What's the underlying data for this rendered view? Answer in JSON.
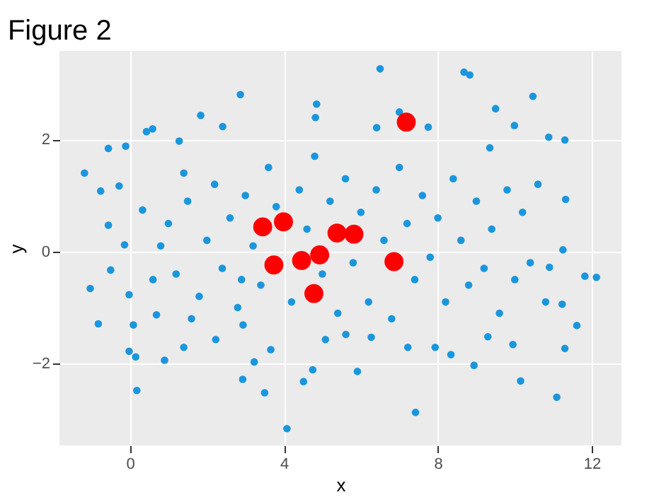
{
  "chart_data": {
    "type": "scatter",
    "title": "Figure 2",
    "xlabel": "x",
    "ylabel": "y",
    "xlim": [
      -1.83,
      12.77
    ],
    "ylim": [
      -3.46,
      3.58
    ],
    "xticks": [
      0,
      4,
      8,
      12
    ],
    "yticks": [
      -2,
      0,
      2
    ],
    "grid": true,
    "series": [
      {
        "color": "#1a96dd",
        "x": [
          -1.18,
          -1.03,
          -0.82,
          -0.76,
          -0.56,
          -0.28,
          -0.11,
          -0.02,
          0.18,
          0.15,
          0.43,
          0.59,
          0.9,
          1.28,
          1.84,
          2.41,
          2.87,
          2.93,
          3.23,
          3.5,
          4.08,
          4.51,
          4.75,
          4.85,
          4.82,
          5.91,
          6.41,
          6.5,
          7.0,
          7.42,
          7.75,
          8.68,
          8.83,
          8.94,
          9.5,
          9.99,
          10.15,
          10.47,
          10.88,
          11.09,
          11.3,
          11.3,
          11.61,
          11.82,
          12.12,
          11.32,
          11.25,
          11.23,
          10.9,
          9.95,
          9.3,
          9.35,
          8.34,
          7.93,
          7.22,
          6.27,
          5.61,
          5.08,
          3.66,
          2.94,
          2.23,
          1.4,
          0.69,
          0.09,
          -0.5,
          -0.14,
          -0.56,
          0.33,
          -0.02,
          1.0,
          1.2,
          1.5,
          1.8,
          2.0,
          2.2,
          2.4,
          2.6,
          2.8,
          3.0,
          3.2,
          3.4,
          3.6,
          3.8,
          4.2,
          4.4,
          4.6,
          4.8,
          5.0,
          5.2,
          5.4,
          5.6,
          5.8,
          6.0,
          6.2,
          6.4,
          6.6,
          6.8,
          7.0,
          7.2,
          7.4,
          7.6,
          7.8,
          8.0,
          8.2,
          8.4,
          8.6,
          8.8,
          9.0,
          9.2,
          9.4,
          9.6,
          9.8,
          10.0,
          10.2,
          10.4,
          10.6,
          10.8,
          0.6,
          0.8,
          1.4,
          1.6,
          2.9
        ],
        "values": [
          1.4,
          -0.66,
          -1.29,
          1.08,
          1.84,
          1.17,
          1.88,
          -1.78,
          -2.48,
          -1.88,
          2.14,
          2.19,
          -1.94,
          1.97,
          2.43,
          2.23,
          2.8,
          -2.28,
          -1.97,
          -2.52,
          -3.16,
          -2.32,
          -2.11,
          2.63,
          2.39,
          -2.14,
          2.21,
          3.26,
          2.49,
          -2.87,
          2.22,
          3.2,
          3.15,
          -2.03,
          2.55,
          2.25,
          -2.31,
          2.77,
          2.04,
          -2.6,
          1.99,
          -1.73,
          -1.32,
          -0.44,
          -0.46,
          0.93,
          0.03,
          -0.94,
          -0.28,
          -1.66,
          -1.52,
          1.85,
          -1.84,
          -1.71,
          -1.71,
          -1.53,
          -1.48,
          -1.57,
          -1.75,
          -1.31,
          -1.57,
          -1.71,
          -1.13,
          -1.31,
          -0.33,
          0.12,
          0.47,
          0.74,
          -0.77,
          0.5,
          -0.4,
          0.9,
          -0.8,
          0.2,
          1.2,
          -0.3,
          0.6,
          -1.0,
          1.0,
          0.1,
          -0.6,
          1.5,
          0.8,
          -0.9,
          1.1,
          0.4,
          1.7,
          -0.4,
          0.9,
          -1.1,
          1.3,
          -0.2,
          0.7,
          -0.9,
          1.1,
          0.2,
          -1.2,
          1.5,
          0.5,
          -0.5,
          1.0,
          -0.1,
          0.6,
          -0.9,
          1.3,
          0.2,
          -0.6,
          0.9,
          -0.3,
          0.4,
          -1.1,
          1.1,
          -0.5,
          0.7,
          -0.2,
          1.2,
          -0.9,
          -0.5,
          0.1,
          1.4,
          -1.2,
          -0.5
        ]
      },
      {
        "color": "#ff0000",
        "x": [
          3.45,
          3.99,
          3.74,
          4.46,
          4.93,
          4.78,
          5.38,
          5.82,
          6.86,
          7.18
        ],
        "values": [
          0.44,
          0.53,
          -0.24,
          -0.16,
          -0.06,
          -0.75,
          0.33,
          0.31,
          -0.18,
          2.31
        ]
      }
    ]
  }
}
